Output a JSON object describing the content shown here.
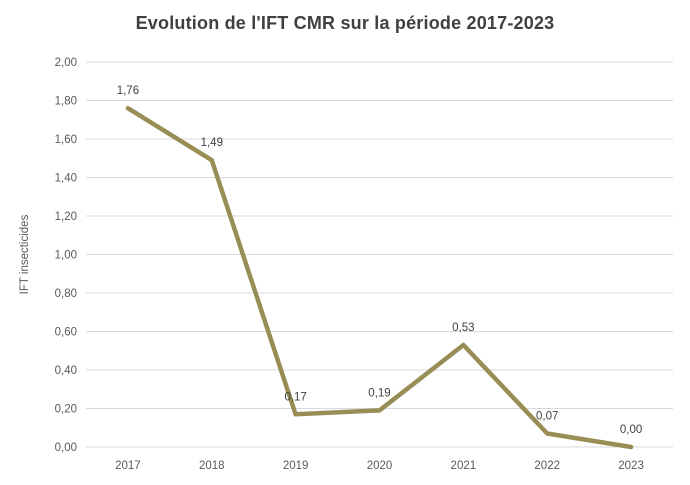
{
  "title": "Evolution de l'IFT CMR sur la période 2017-2023",
  "chart_data": {
    "type": "line",
    "title": "Evolution de l'IFT CMR sur la période 2017-2023",
    "categories": [
      "2017",
      "2018",
      "2019",
      "2020",
      "2021",
      "2022",
      "2023"
    ],
    "values": [
      1.76,
      1.49,
      0.17,
      0.19,
      0.53,
      0.07,
      0.0
    ],
    "data_labels": [
      "1,76",
      "1,49",
      "0,17",
      "0,19",
      "0,53",
      "0,07",
      "0,00"
    ],
    "xlabel": "",
    "ylabel": "IFT insecticides",
    "ylim": [
      0,
      2
    ],
    "ytick_step": 0.2,
    "ytick_labels": [
      "0,00",
      "0,20",
      "0,40",
      "0,60",
      "0,80",
      "1,00",
      "1,20",
      "1,40",
      "1,60",
      "1,80",
      "2,00"
    ],
    "grid": "horizontal",
    "legend": "none",
    "series_name": "IFT CMR",
    "colors": {
      "line": "#988e55",
      "title_text": "#404040",
      "data_label_text": "#404040",
      "axis_text": "#595959",
      "gridline": "#d9d9d9",
      "background": "#ffffff"
    }
  }
}
